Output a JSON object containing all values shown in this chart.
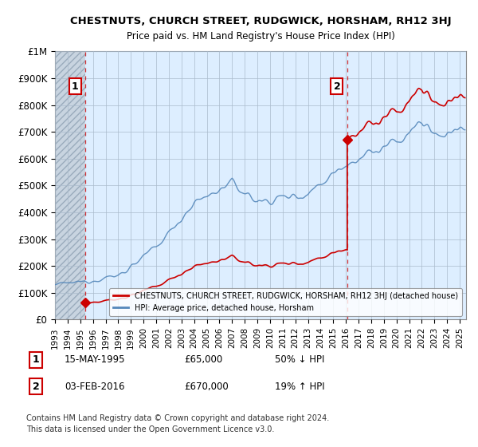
{
  "title": "CHESTNUTS, CHURCH STREET, RUDGWICK, HORSHAM, RH12 3HJ",
  "subtitle": "Price paid vs. HM Land Registry's House Price Index (HPI)",
  "ylim": [
    0,
    1000000
  ],
  "yticks": [
    0,
    100000,
    200000,
    300000,
    400000,
    500000,
    600000,
    700000,
    800000,
    900000,
    1000000
  ],
  "ytick_labels": [
    "£0",
    "£100K",
    "£200K",
    "£300K",
    "£400K",
    "£500K",
    "£600K",
    "£700K",
    "£800K",
    "£900K",
    "£1M"
  ],
  "xlim_start": 1993,
  "xlim_end": 2025.5,
  "sale1_year": 1995.38,
  "sale1_price": 65000,
  "sale2_year": 2016.09,
  "sale2_price": 670000,
  "legend_red": "CHESTNUTS, CHURCH STREET, RUDGWICK, HORSHAM, RH12 3HJ (detached house)",
  "legend_blue": "HPI: Average price, detached house, Horsham",
  "row1_num": "1",
  "row1_date": "15-MAY-1995",
  "row1_price": "£65,000",
  "row1_hpi": "50% ↓ HPI",
  "row2_num": "2",
  "row2_date": "03-FEB-2016",
  "row2_price": "£670,000",
  "row2_hpi": "19% ↑ HPI",
  "footer_line1": "Contains HM Land Registry data © Crown copyright and database right 2024.",
  "footer_line2": "This data is licensed under the Open Government Licence v3.0.",
  "red_color": "#cc0000",
  "blue_color": "#5588bb",
  "bg_color": "#ddeeff",
  "hatch_color": "#c0c8d8",
  "grid_color": "#aabbcc",
  "title_fontsize": 9.5,
  "subtitle_fontsize": 8.5
}
